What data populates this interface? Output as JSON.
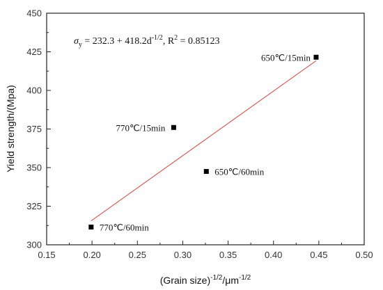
{
  "chart_data": {
    "type": "scatter",
    "title": "",
    "xlabel": {
      "main": "(Grain size)",
      "sup1": "-1/2",
      "mid": "/μm",
      "sup2": "-1/2"
    },
    "ylabel": "Yield strength/(Mpa)",
    "xlim": [
      0.15,
      0.5
    ],
    "ylim": [
      300,
      450
    ],
    "xticks": [
      0.15,
      0.2,
      0.25,
      0.3,
      0.35,
      0.4,
      0.45,
      0.5
    ],
    "xtick_labels": [
      "0.15",
      "0.20",
      "0.25",
      "0.30",
      "0.35",
      "0.40",
      "0.45",
      "0.50"
    ],
    "yticks": [
      300,
      325,
      350,
      375,
      400,
      425,
      450
    ],
    "ytick_labels": [
      "300",
      "325",
      "350",
      "375",
      "400",
      "425",
      "450"
    ],
    "points": [
      {
        "x": 0.199,
        "y": 311.5,
        "label": "770℃/60min"
      },
      {
        "x": 0.29,
        "y": 376.0,
        "label": "770℃/15min"
      },
      {
        "x": 0.326,
        "y": 347.5,
        "label": "650℃/60min"
      },
      {
        "x": 0.447,
        "y": 421.5,
        "label": "650℃/15min"
      }
    ],
    "fit_line": {
      "intercept": 232.3,
      "slope": 418.2,
      "x_range": [
        0.199,
        0.447
      ],
      "color": "#d9534f"
    },
    "equation": {
      "sigma": "σ",
      "sub": "y",
      "body": " = 232.3 + 418.2d",
      "sup": "-1/2",
      "rest": ", R",
      "sup2": "2",
      "tail": " = 0.85123"
    },
    "grid": false,
    "legend": "none"
  }
}
